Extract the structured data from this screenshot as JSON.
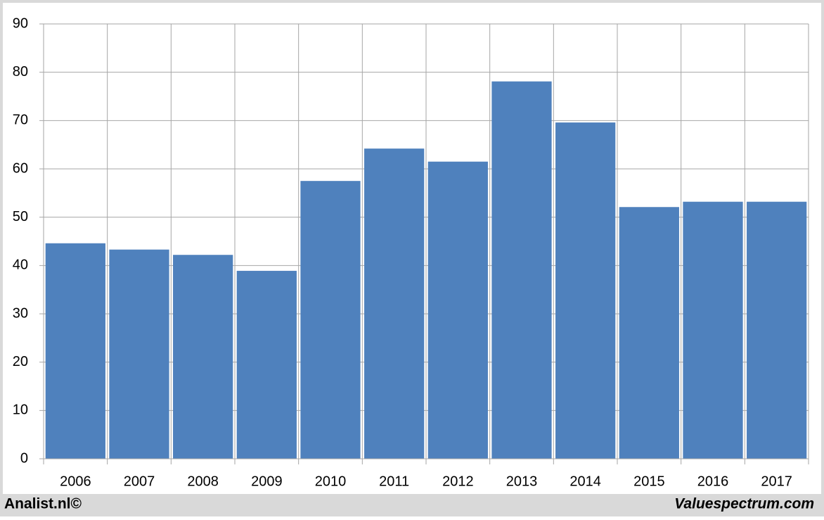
{
  "chart_data": {
    "type": "bar",
    "categories": [
      "2006",
      "2007",
      "2008",
      "2009",
      "2010",
      "2011",
      "2012",
      "2013",
      "2014",
      "2015",
      "2016",
      "2017"
    ],
    "values": [
      44.6,
      43.3,
      42.2,
      38.9,
      57.5,
      64.2,
      61.5,
      78.1,
      69.6,
      52.1,
      53.2,
      53.2
    ],
    "color": "#4f81bd",
    "ylim": [
      0,
      90
    ],
    "yticks": [
      0,
      10,
      20,
      30,
      40,
      50,
      60,
      70,
      80,
      90
    ],
    "grid": true,
    "annotations": [
      "Analist.nl©",
      "Valuespectrum.com"
    ]
  }
}
